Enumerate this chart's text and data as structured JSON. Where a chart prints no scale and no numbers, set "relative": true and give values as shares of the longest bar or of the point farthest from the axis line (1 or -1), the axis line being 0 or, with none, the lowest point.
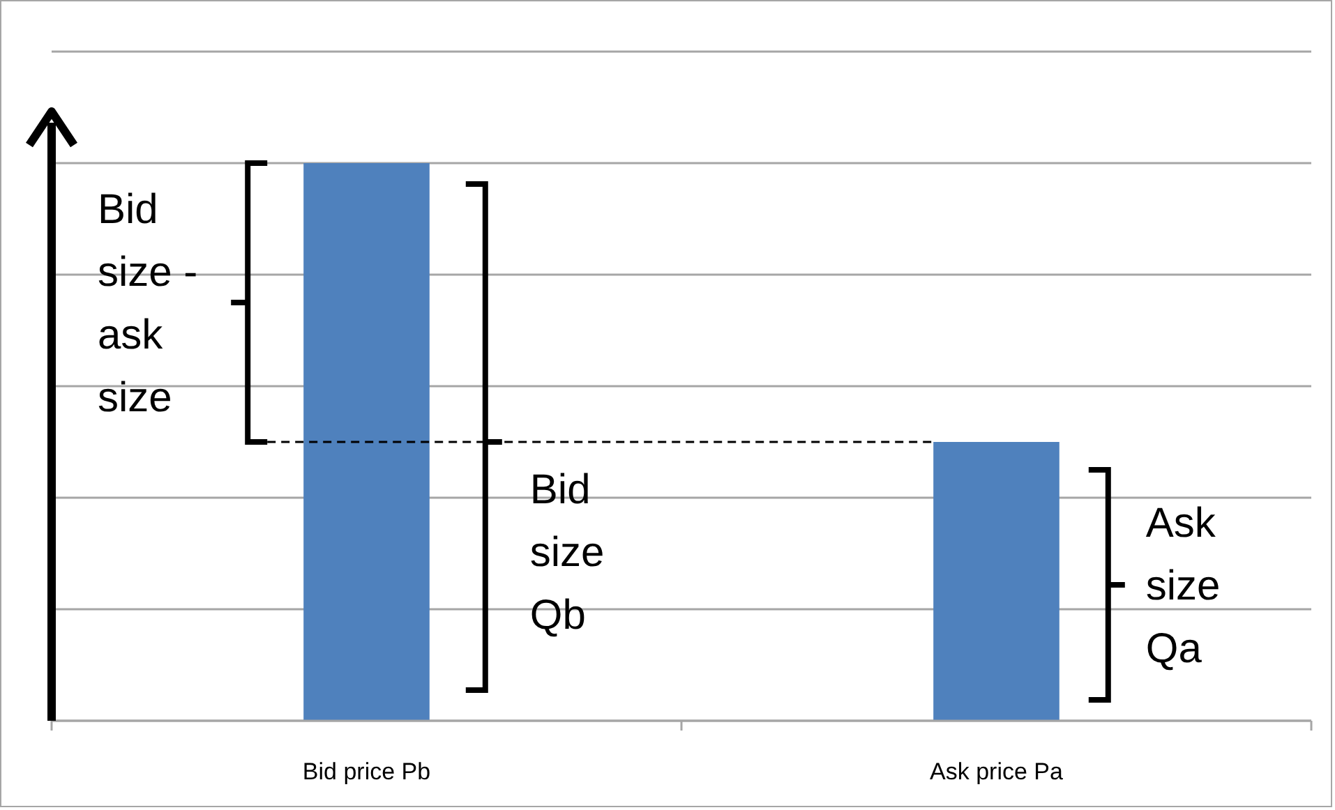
{
  "chart_data": {
    "type": "bar",
    "categories": [
      "Bid price Pb",
      "Ask price Pa"
    ],
    "values": [
      1,
      0.5
    ],
    "color": "#4f81bd",
    "relative": true,
    "grid": true,
    "ref_lines": [
      {
        "axis": "y",
        "value": 0.5,
        "line_style": "dashed",
        "color": "#000000"
      }
    ],
    "annotations": [
      "Bid size - ask size",
      "Bid size Qb",
      "Ask size Qa"
    ]
  }
}
